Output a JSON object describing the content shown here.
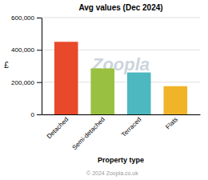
{
  "chart_data": {
    "type": "bar",
    "title": "Avg values (Dec 2024)",
    "categories": [
      "Detached",
      "Semi-detached",
      "Terraced",
      "Flats"
    ],
    "values": [
      450000,
      285000,
      260000,
      175000
    ],
    "colors": [
      "#e8492a",
      "#99c040",
      "#4db8c0",
      "#f0b429"
    ],
    "ylabel": "£",
    "xlabel": "Property type",
    "ylim": [
      0,
      600000
    ],
    "yticks": [
      0,
      {
        "value": 200000,
        "label": "200,000"
      },
      {
        "value": 400000,
        "label": "400,000"
      },
      {
        "value": 600000,
        "label": "600,000"
      }
    ],
    "grid": true,
    "annotations": [
      "Zoopla",
      "© 2024 Zoopla.co.uk"
    ]
  }
}
